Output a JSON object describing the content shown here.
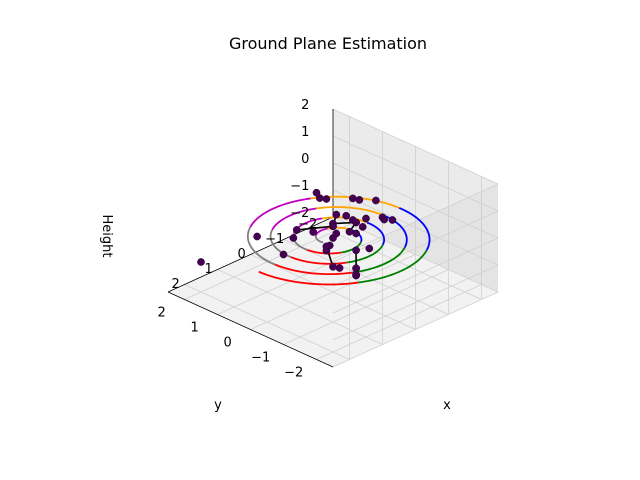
{
  "chart_data": {
    "type": "scatter",
    "projection": "3d",
    "title": "Ground Plane Estimation",
    "xlabel": "x",
    "ylabel": "y",
    "zlabel": "Height",
    "xlim": [
      -2.5,
      2.5
    ],
    "ylim": [
      -2.5,
      2.5
    ],
    "zlim": [
      -2,
      2
    ],
    "x_ticks": [
      -2,
      -1,
      0,
      1,
      2
    ],
    "y_ticks": [
      -2,
      -1,
      0,
      1,
      2
    ],
    "z_ticks": [
      -2,
      -1,
      0,
      1,
      2
    ],
    "x_tick_labels": [
      "−2",
      "−1",
      "0",
      "1",
      "2"
    ],
    "y_tick_labels": [
      "−2",
      "−1",
      "0",
      "1",
      "2"
    ],
    "z_tick_labels": [
      "−2",
      "−1",
      "0",
      "1",
      "2"
    ],
    "grid": true,
    "spiral": {
      "z": 0,
      "r_start": 0.3,
      "r_end": 2.25,
      "turns": 4,
      "sector_colors": [
        "#808080",
        "#c000c0",
        "#ffa500",
        "#0000ff",
        "#008000",
        "#ff0000"
      ]
    },
    "points": [
      {
        "x": 0.0,
        "y": 0.0,
        "z": 0.0
      },
      {
        "x": -0.2,
        "y": 0.1,
        "z": 0.0
      },
      {
        "x": 0.3,
        "y": -0.2,
        "z": 0.0
      },
      {
        "x": -0.5,
        "y": -0.2,
        "z": 0.0
      },
      {
        "x": 0.1,
        "y": 0.5,
        "z": 0.0
      },
      {
        "x": -0.9,
        "y": 0.3,
        "z": 0.0
      },
      {
        "x": 0.6,
        "y": 0.6,
        "z": 0.0
      },
      {
        "x": -0.2,
        "y": -0.9,
        "z": 0.0
      },
      {
        "x": 1.3,
        "y": 0.2,
        "z": 0.0
      },
      {
        "x": -1.5,
        "y": -0.3,
        "z": 0.0
      },
      {
        "x": 0.9,
        "y": -1.1,
        "z": 0.0
      },
      {
        "x": 1.1,
        "y": 1.2,
        "z": 0.0
      },
      {
        "x": -1.2,
        "y": 1.4,
        "z": 0.0
      },
      {
        "x": -1.9,
        "y": 0.6,
        "z": 0.0
      },
      {
        "x": 1.9,
        "y": 2.1,
        "z": -1.0
      },
      {
        "x": -0.1,
        "y": -0.8,
        "z": 0.8
      },
      {
        "x": 0.2,
        "y": -1.2,
        "z": 1.5
      },
      {
        "x": 1.6,
        "y": -1.4,
        "z": 1.2
      },
      {
        "x": -1.3,
        "y": 0.9,
        "z": -0.4
      }
    ],
    "segments": [
      {
        "x0": 1.5,
        "y0": -2.2,
        "z0": 1.6,
        "x1": 1.2,
        "y1": -1.9,
        "z1": 0.6
      },
      {
        "x0": 1.2,
        "y0": -1.9,
        "z0": 0.6,
        "x1": 0.9,
        "y1": -1.6,
        "z1": 0.0
      },
      {
        "x0": 0.9,
        "y0": -1.6,
        "z0": 0.0,
        "x1": 0.6,
        "y1": -1.3,
        "z1": -0.3
      },
      {
        "x0": 2.0,
        "y0": -1.8,
        "z0": 1.8,
        "x1": 1.5,
        "y1": -1.5,
        "z1": 0.6
      },
      {
        "x0": -0.6,
        "y0": -0.1,
        "z0": 0.3,
        "x1": -0.1,
        "y1": -0.4,
        "z1": 0.4
      },
      {
        "x0": -0.3,
        "y0": 0.3,
        "z0": 0.2,
        "x1": -0.6,
        "y1": -0.1,
        "z1": 0.3
      },
      {
        "x0": -2.3,
        "y0": 1.5,
        "z0": -0.7,
        "x1": -1.8,
        "y1": 1.2,
        "z1": -0.2
      },
      {
        "x0": -0.8,
        "y0": 1.9,
        "z0": -1.2,
        "x1": -1.2,
        "y1": 1.2,
        "z1": -0.9
      },
      {
        "x0": -1.2,
        "y0": 1.2,
        "z0": -0.9,
        "x1": -1.1,
        "y1": 1.0,
        "z1": -0.3
      },
      {
        "x0": -1.8,
        "y0": 2.3,
        "z0": -0.6,
        "x1": -1.4,
        "y1": 1.8,
        "z1": -0.3
      },
      {
        "x0": -0.9,
        "y0": -0.6,
        "z0": 0.6,
        "x1": -0.85,
        "y1": -0.7,
        "z1": 0.6
      }
    ]
  }
}
